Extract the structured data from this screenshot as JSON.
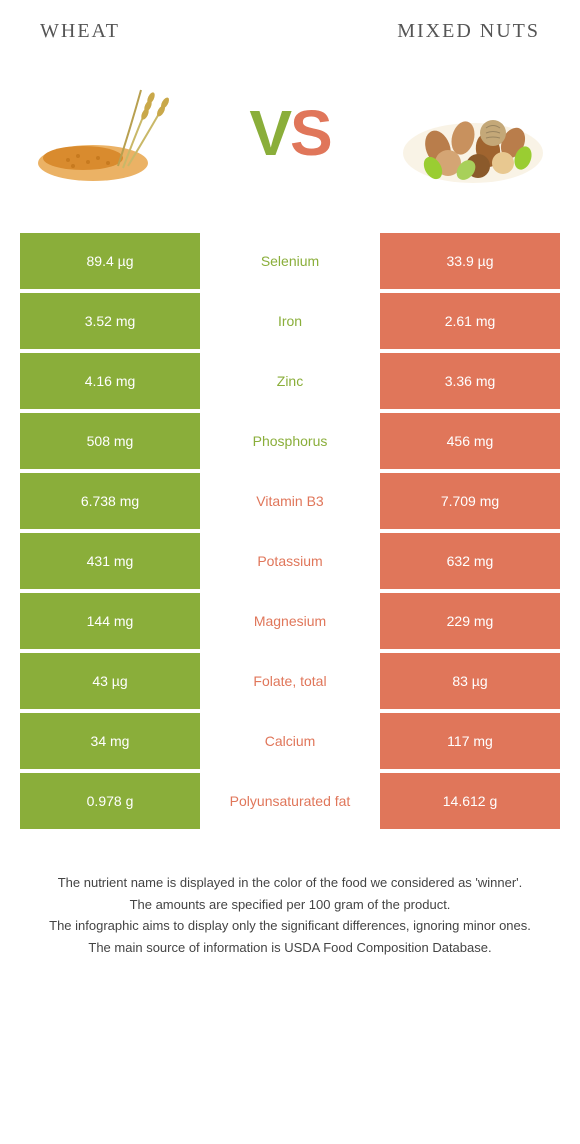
{
  "colors": {
    "left": "#8aae3a",
    "right": "#e0765a",
    "text": "#444444"
  },
  "header": {
    "left_title": "Wheat",
    "right_title": "Mixed nuts",
    "vs_v": "V",
    "vs_s": "S"
  },
  "rows": [
    {
      "left": "89.4 µg",
      "label": "Selenium",
      "right": "33.9 µg",
      "winner": "left"
    },
    {
      "left": "3.52 mg",
      "label": "Iron",
      "right": "2.61 mg",
      "winner": "left"
    },
    {
      "left": "4.16 mg",
      "label": "Zinc",
      "right": "3.36 mg",
      "winner": "left"
    },
    {
      "left": "508 mg",
      "label": "Phosphorus",
      "right": "456 mg",
      "winner": "left"
    },
    {
      "left": "6.738 mg",
      "label": "Vitamin B3",
      "right": "7.709 mg",
      "winner": "right"
    },
    {
      "left": "431 mg",
      "label": "Potassium",
      "right": "632 mg",
      "winner": "right"
    },
    {
      "left": "144 mg",
      "label": "Magnesium",
      "right": "229 mg",
      "winner": "right"
    },
    {
      "left": "43 µg",
      "label": "Folate, total",
      "right": "83 µg",
      "winner": "right"
    },
    {
      "left": "34 mg",
      "label": "Calcium",
      "right": "117 mg",
      "winner": "right"
    },
    {
      "left": "0.978 g",
      "label": "Polyunsaturated fat",
      "right": "14.612 g",
      "winner": "right"
    }
  ],
  "footer": {
    "line1": "The nutrient name is displayed in the color of the food we considered as 'winner'.",
    "line2": "The amounts are specified per 100 gram of the product.",
    "line3": "The infographic aims to display only the significant differences, ignoring minor ones.",
    "line4": "The main source of information is USDA Food Composition Database."
  }
}
